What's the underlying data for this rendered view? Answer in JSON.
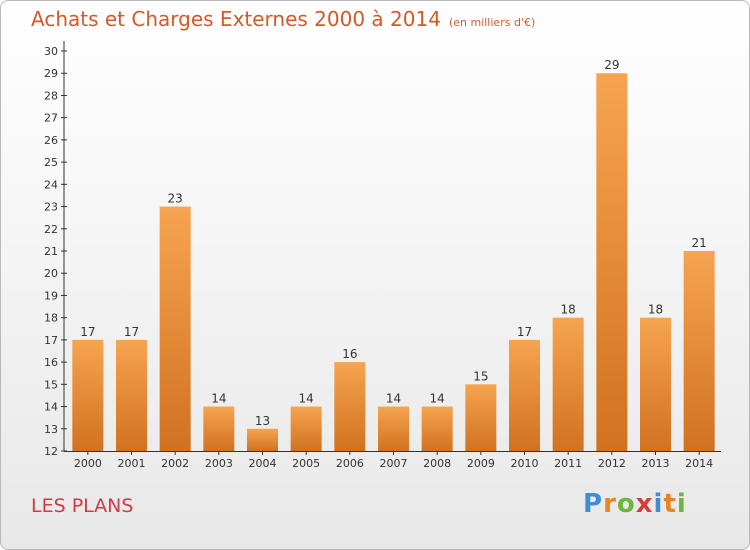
{
  "title": "Achats et Charges Externes 2000 à 2014",
  "unit_note": "(en milliers d'€)",
  "location": "LES PLANS",
  "brand": {
    "letters": [
      "P",
      "r",
      "o",
      "x",
      "i",
      "t",
      "i"
    ],
    "colors": [
      "#3c8fd6",
      "#e9841e",
      "#6db53c",
      "#d63c3c",
      "#3c8fd6",
      "#e9841e",
      "#6db53c"
    ]
  },
  "colors": {
    "bar_top": "#f6a450",
    "bar_bottom": "#d1721f",
    "title": "#d25a2a",
    "location": "#cf3b45"
  },
  "chart_data": {
    "type": "bar",
    "categories": [
      "2000",
      "2001",
      "2002",
      "2003",
      "2004",
      "2005",
      "2006",
      "2007",
      "2008",
      "2009",
      "2010",
      "2011",
      "2012",
      "2013",
      "2014"
    ],
    "values": [
      17,
      17,
      23,
      14,
      13,
      14,
      16,
      14,
      14,
      15,
      17,
      18,
      29,
      18,
      21
    ],
    "ylim": [
      12,
      30
    ],
    "yticks": [
      12,
      13,
      14,
      15,
      16,
      17,
      18,
      19,
      20,
      21,
      22,
      23,
      24,
      25,
      26,
      27,
      28,
      29,
      30
    ],
    "grid": false,
    "data_labels": true
  }
}
